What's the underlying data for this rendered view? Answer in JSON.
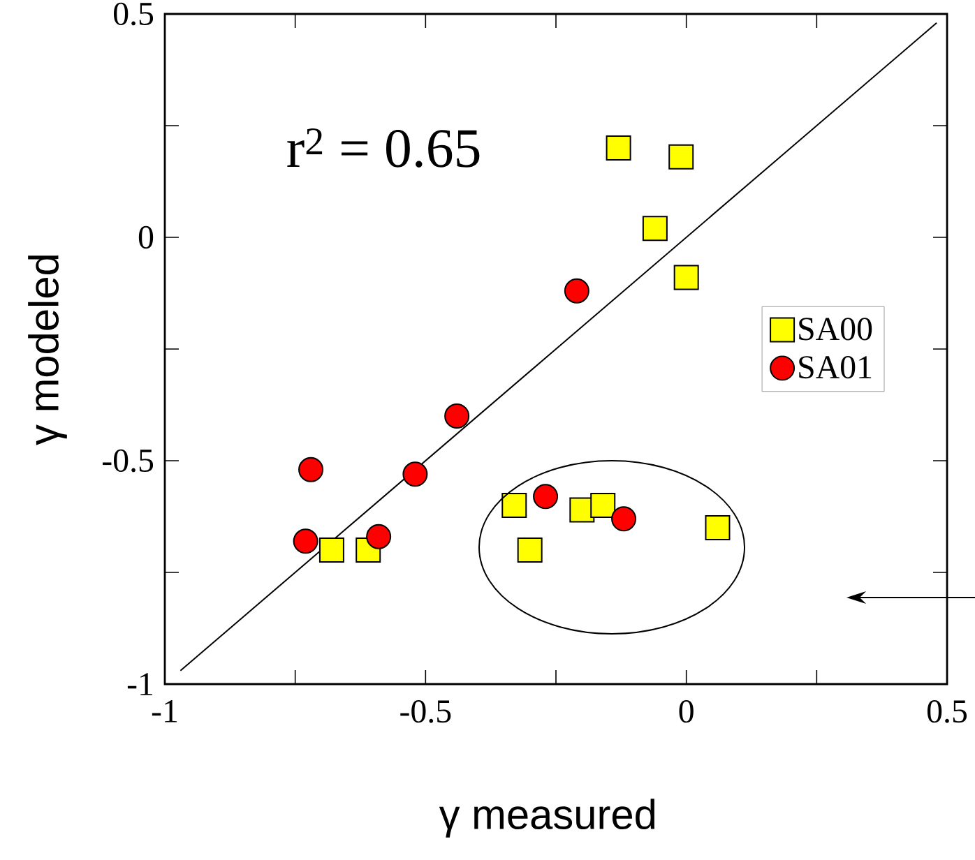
{
  "chart_data": {
    "type": "scatter",
    "xlabel": "γ measured",
    "ylabel": "γ modeled",
    "xlim": [
      -1,
      0.5
    ],
    "ylim": [
      -1,
      0.5
    ],
    "xticks": [
      -1,
      {
        "value": -0.75,
        "label": null
      },
      -0.5,
      {
        "value": -0.25,
        "label": null
      },
      0,
      {
        "value": 0.25,
        "label": null
      },
      0.5
    ],
    "yticks": [
      -1,
      {
        "value": -0.75,
        "label": null
      },
      -0.5,
      {
        "value": -0.25,
        "label": null
      },
      0,
      {
        "value": 0.25,
        "label": null
      },
      0.5
    ],
    "grid": false,
    "legend": "right",
    "annotations": [
      "r$^{2}$ = 0.65"
    ],
    "series": [
      {
        "name": "SA00",
        "color": "#ffff00",
        "marker": "square",
        "x": [
          -0.13,
          -0.01,
          -0.06,
          0.0,
          -0.33,
          -0.3,
          -0.2,
          -0.16,
          0.06,
          -0.68,
          -0.61
        ],
        "values": [
          0.2,
          0.18,
          0.02,
          -0.09,
          -0.6,
          -0.7,
          -0.61,
          -0.6,
          -0.65,
          -0.7,
          -0.7
        ]
      },
      {
        "name": "SA01",
        "color": "#ff0000",
        "marker": "circle",
        "x": [
          -0.72,
          -0.73,
          -0.59,
          -0.52,
          -0.44,
          -0.21,
          -0.27,
          -0.12
        ],
        "values": [
          -0.52,
          -0.68,
          -0.67,
          -0.53,
          -0.4,
          -0.12,
          -0.58,
          -0.63
        ]
      },
      {
        "type": "line",
        "color": "#000000",
        "marker": "none",
        "x": [
          -0.97,
          0.48
        ],
        "values": [
          -0.97,
          0.48
        ]
      }
    ]
  }
}
